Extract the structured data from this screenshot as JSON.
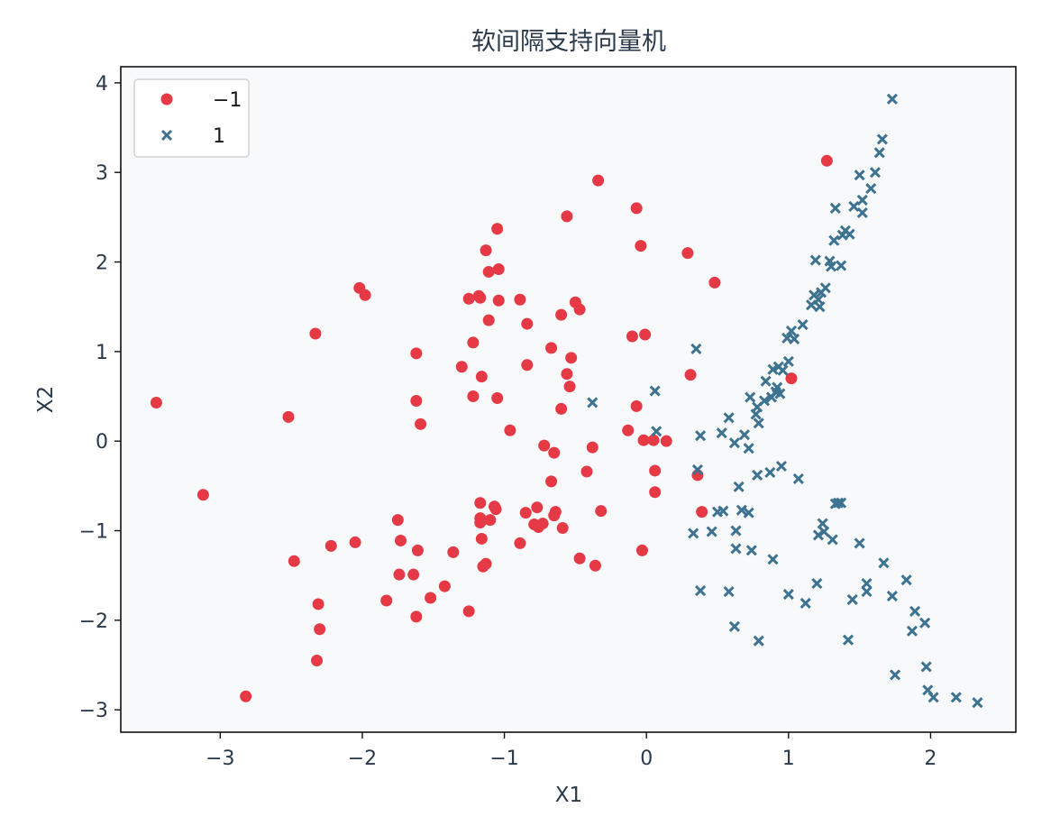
{
  "chart_data": {
    "type": "scatter",
    "title": "软间隔支持向量机",
    "xlabel": "X1",
    "ylabel": "X2",
    "xlim": [
      -3.7,
      2.6
    ],
    "ylim": [
      -3.25,
      4.18
    ],
    "xticks": [
      -3,
      -2,
      -1,
      0,
      1,
      2
    ],
    "yticks": [
      -3,
      -2,
      -1,
      0,
      1,
      2,
      3,
      4
    ],
    "xtick_labels": [
      "−3",
      "−2",
      "−1",
      "0",
      "1",
      "2"
    ],
    "ytick_labels": [
      "−3",
      "−2",
      "−1",
      "0",
      "1",
      "2",
      "3",
      "4"
    ],
    "grid": false,
    "legend_position": "top-left",
    "background": "#f7f9fb",
    "series": [
      {
        "name": "−1",
        "marker": "circle",
        "color": "#e63946",
        "points": [
          [
            -3.45,
            0.43
          ],
          [
            -3.12,
            -0.6
          ],
          [
            -2.82,
            -2.85
          ],
          [
            -2.52,
            0.27
          ],
          [
            -2.48,
            -1.34
          ],
          [
            -2.33,
            1.2
          ],
          [
            -2.31,
            -1.82
          ],
          [
            -2.32,
            -2.45
          ],
          [
            -2.3,
            -2.1
          ],
          [
            -2.22,
            -1.17
          ],
          [
            -2.05,
            -1.13
          ],
          [
            -2.02,
            1.71
          ],
          [
            -1.98,
            1.63
          ],
          [
            -1.83,
            -1.78
          ],
          [
            -1.75,
            -0.88
          ],
          [
            -1.73,
            -1.11
          ],
          [
            -1.74,
            -1.49
          ],
          [
            -1.64,
            -1.49
          ],
          [
            -1.62,
            0.98
          ],
          [
            -1.62,
            0.45
          ],
          [
            -1.61,
            -1.22
          ],
          [
            -1.62,
            -1.96
          ],
          [
            -1.59,
            0.19
          ],
          [
            -1.52,
            -1.75
          ],
          [
            -1.42,
            -1.62
          ],
          [
            -1.36,
            -1.24
          ],
          [
            -1.3,
            0.83
          ],
          [
            -1.25,
            1.59
          ],
          [
            -1.22,
            1.1
          ],
          [
            -1.22,
            0.5
          ],
          [
            -1.25,
            -1.9
          ],
          [
            -1.18,
            1.62
          ],
          [
            -1.17,
            1.6
          ],
          [
            -1.16,
            0.72
          ],
          [
            -1.17,
            -0.69
          ],
          [
            -1.17,
            -0.86
          ],
          [
            -1.17,
            -0.91
          ],
          [
            -1.16,
            -1.09
          ],
          [
            -1.15,
            -1.4
          ],
          [
            -1.13,
            -1.37
          ],
          [
            -1.13,
            2.13
          ],
          [
            -1.11,
            1.89
          ],
          [
            -1.11,
            1.35
          ],
          [
            -1.1,
            -0.88
          ],
          [
            -1.06,
            -0.76
          ],
          [
            -1.07,
            -0.73
          ],
          [
            -1.05,
            2.37
          ],
          [
            -1.04,
            1.92
          ],
          [
            -1.04,
            1.57
          ],
          [
            -1.05,
            0.48
          ],
          [
            -0.96,
            0.12
          ],
          [
            -0.89,
            1.58
          ],
          [
            -0.89,
            -1.14
          ],
          [
            -0.84,
            1.31
          ],
          [
            -0.84,
            0.85
          ],
          [
            -0.85,
            -0.8
          ],
          [
            -0.79,
            -0.93
          ],
          [
            -0.77,
            -0.74
          ],
          [
            -0.76,
            -0.96
          ],
          [
            -0.73,
            -0.92
          ],
          [
            -0.72,
            -0.05
          ],
          [
            -0.67,
            1.04
          ],
          [
            -0.67,
            -0.45
          ],
          [
            -0.65,
            -0.13
          ],
          [
            -0.64,
            -0.79
          ],
          [
            -0.65,
            -0.83
          ],
          [
            -0.6,
            1.41
          ],
          [
            -0.6,
            0.36
          ],
          [
            -0.59,
            -0.97
          ],
          [
            -0.56,
            2.51
          ],
          [
            -0.56,
            0.75
          ],
          [
            -0.54,
            0.61
          ],
          [
            -0.53,
            0.93
          ],
          [
            -0.5,
            1.55
          ],
          [
            -0.47,
            1.47
          ],
          [
            -0.47,
            -1.31
          ],
          [
            -0.42,
            -0.34
          ],
          [
            -0.38,
            -0.07
          ],
          [
            -0.36,
            -1.39
          ],
          [
            -0.34,
            2.91
          ],
          [
            -0.32,
            -0.78
          ],
          [
            -0.13,
            0.12
          ],
          [
            -0.1,
            1.17
          ],
          [
            -0.07,
            2.6
          ],
          [
            -0.07,
            0.39
          ],
          [
            -0.04,
            2.18
          ],
          [
            -0.03,
            -1.22
          ],
          [
            -0.02,
            0.01
          ],
          [
            -0.01,
            1.19
          ],
          [
            0.05,
            0.01
          ],
          [
            0.06,
            -0.33
          ],
          [
            0.06,
            -0.57
          ],
          [
            0.14,
            0.0
          ],
          [
            0.29,
            2.1
          ],
          [
            0.31,
            0.74
          ],
          [
            0.36,
            -0.38
          ],
          [
            0.39,
            -0.79
          ],
          [
            0.48,
            1.77
          ],
          [
            1.02,
            0.7
          ],
          [
            1.27,
            3.13
          ]
        ]
      },
      {
        "name": "1",
        "marker": "x",
        "color": "#3d7391",
        "points": [
          [
            -0.38,
            0.43
          ],
          [
            0.06,
            0.56
          ],
          [
            0.07,
            0.11
          ],
          [
            0.33,
            -1.03
          ],
          [
            0.35,
            1.03
          ],
          [
            0.36,
            -0.32
          ],
          [
            0.38,
            0.06
          ],
          [
            0.38,
            -1.67
          ],
          [
            0.46,
            -1.01
          ],
          [
            0.5,
            -0.79
          ],
          [
            0.53,
            0.09
          ],
          [
            0.54,
            -0.78
          ],
          [
            0.58,
            0.26
          ],
          [
            0.58,
            -1.68
          ],
          [
            0.62,
            -0.02
          ],
          [
            0.62,
            -2.07
          ],
          [
            0.63,
            -1.0
          ],
          [
            0.63,
            -1.2
          ],
          [
            0.65,
            -0.51
          ],
          [
            0.67,
            -0.77
          ],
          [
            0.69,
            0.07
          ],
          [
            0.72,
            -0.8
          ],
          [
            0.72,
            -0.08
          ],
          [
            0.73,
            0.49
          ],
          [
            0.74,
            -1.22
          ],
          [
            0.77,
            0.3
          ],
          [
            0.78,
            -0.38
          ],
          [
            0.78,
            0.38
          ],
          [
            0.79,
            0.2
          ],
          [
            0.79,
            -2.23
          ],
          [
            0.83,
            0.45
          ],
          [
            0.84,
            0.67
          ],
          [
            0.87,
            -0.35
          ],
          [
            0.88,
            0.49
          ],
          [
            0.89,
            -1.32
          ],
          [
            0.89,
            0.8
          ],
          [
            0.91,
            0.55
          ],
          [
            0.92,
            0.6
          ],
          [
            0.93,
            0.83
          ],
          [
            0.94,
            0.53
          ],
          [
            0.95,
            -0.28
          ],
          [
            0.96,
            0.79
          ],
          [
            0.99,
            1.15
          ],
          [
            1.0,
            -1.71
          ],
          [
            1.0,
            0.89
          ],
          [
            1.02,
            1.23
          ],
          [
            1.04,
            1.14
          ],
          [
            1.07,
            -0.42
          ],
          [
            1.1,
            1.3
          ],
          [
            1.12,
            -1.81
          ],
          [
            1.16,
            1.52
          ],
          [
            1.18,
            1.63
          ],
          [
            1.19,
            2.02
          ],
          [
            1.2,
            -1.59
          ],
          [
            1.21,
            1.58
          ],
          [
            1.21,
            -1.05
          ],
          [
            1.22,
            1.5
          ],
          [
            1.23,
            1.66
          ],
          [
            1.24,
            -0.92
          ],
          [
            1.25,
            -1.01
          ],
          [
            1.26,
            1.71
          ],
          [
            1.29,
            2.01
          ],
          [
            1.3,
            1.95
          ],
          [
            1.31,
            -1.1
          ],
          [
            1.32,
            2.24
          ],
          [
            1.33,
            2.6
          ],
          [
            1.33,
            -0.7
          ],
          [
            1.35,
            -0.69
          ],
          [
            1.37,
            -0.69
          ],
          [
            1.37,
            1.96
          ],
          [
            1.38,
            2.3
          ],
          [
            1.4,
            2.35
          ],
          [
            1.42,
            -2.22
          ],
          [
            1.43,
            2.31
          ],
          [
            1.45,
            -1.77
          ],
          [
            1.46,
            2.62
          ],
          [
            1.5,
            2.97
          ],
          [
            1.5,
            -1.14
          ],
          [
            1.52,
            2.69
          ],
          [
            1.52,
            2.55
          ],
          [
            1.55,
            -1.59
          ],
          [
            1.55,
            -1.68
          ],
          [
            1.58,
            2.82
          ],
          [
            1.61,
            3.0
          ],
          [
            1.64,
            3.22
          ],
          [
            1.66,
            3.37
          ],
          [
            1.67,
            -1.36
          ],
          [
            1.73,
            3.82
          ],
          [
            1.73,
            -1.73
          ],
          [
            1.75,
            -2.61
          ],
          [
            1.83,
            -1.55
          ],
          [
            1.87,
            -2.12
          ],
          [
            1.89,
            -1.9
          ],
          [
            1.96,
            -2.03
          ],
          [
            1.97,
            -2.52
          ],
          [
            1.98,
            -2.78
          ],
          [
            2.02,
            -2.86
          ],
          [
            2.18,
            -2.86
          ],
          [
            2.33,
            -2.92
          ]
        ]
      }
    ]
  }
}
